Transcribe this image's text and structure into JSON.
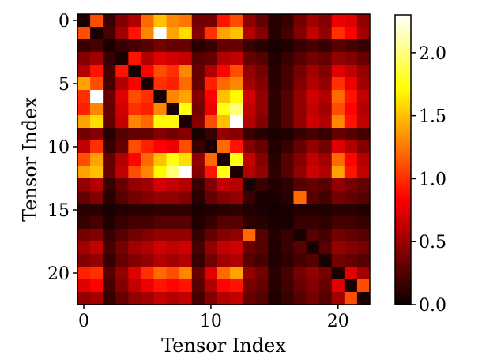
{
  "chart_data": {
    "type": "heatmap",
    "title": "",
    "xlabel": "Tensor Index",
    "ylabel": "Tensor Index",
    "n": 23,
    "x_ticks": [
      0,
      10,
      20
    ],
    "y_ticks": [
      0,
      5,
      10,
      15,
      20
    ],
    "x_tick_labels": [
      "0",
      "10",
      "20"
    ],
    "y_tick_labels": [
      "0",
      "5",
      "10",
      "15",
      "20"
    ],
    "colormap": "hot",
    "colorbar": {
      "range": [
        0.0,
        2.3
      ],
      "ticks": [
        0.0,
        0.5,
        1.0,
        1.5,
        2.0
      ],
      "tick_labels": [
        "0.0",
        "0.5",
        "1.0",
        "1.5",
        "2.0"
      ]
    },
    "values": [
      [
        0.05,
        1.1,
        0.15,
        0.4,
        0.55,
        1.2,
        1.5,
        1.3,
        1.25,
        0.35,
        0.35,
        0.9,
        1.1,
        0.45,
        0.3,
        0.1,
        0.15,
        0.35,
        0.5,
        0.4,
        0.75,
        0.7,
        0.45
      ],
      [
        1.1,
        0.05,
        0.2,
        0.5,
        0.9,
        1.3,
        2.3,
        1.4,
        1.6,
        0.4,
        1.0,
        1.4,
        1.5,
        0.55,
        0.4,
        0.1,
        0.2,
        0.4,
        0.6,
        0.45,
        1.0,
        0.8,
        0.5
      ],
      [
        0.15,
        0.2,
        0.05,
        0.15,
        0.2,
        0.25,
        0.35,
        0.3,
        0.3,
        0.1,
        0.15,
        0.3,
        0.3,
        0.15,
        0.1,
        0.05,
        0.08,
        0.15,
        0.2,
        0.15,
        0.25,
        0.2,
        0.15
      ],
      [
        0.4,
        0.5,
        0.15,
        0.05,
        0.9,
        0.55,
        0.7,
        0.65,
        0.6,
        0.25,
        0.3,
        0.55,
        0.6,
        0.3,
        0.25,
        0.08,
        0.15,
        0.25,
        0.35,
        0.3,
        0.45,
        0.4,
        0.3
      ],
      [
        0.55,
        0.9,
        0.2,
        0.9,
        0.05,
        0.8,
        1.1,
        1.0,
        1.3,
        0.3,
        0.55,
        0.85,
        1.1,
        0.45,
        0.35,
        0.1,
        0.2,
        0.35,
        0.5,
        0.4,
        0.7,
        0.6,
        0.45
      ],
      [
        1.4,
        1.1,
        0.2,
        0.55,
        0.8,
        0.05,
        1.0,
        0.95,
        1.2,
        0.3,
        0.95,
        1.2,
        1.3,
        0.5,
        0.4,
        0.1,
        0.2,
        0.4,
        0.55,
        0.45,
        1.0,
        0.75,
        0.5
      ],
      [
        1.0,
        2.3,
        0.3,
        0.7,
        1.1,
        1.0,
        0.05,
        1.3,
        1.4,
        0.4,
        0.8,
        1.5,
        1.7,
        0.65,
        0.45,
        0.12,
        0.25,
        0.45,
        0.65,
        0.55,
        1.2,
        0.9,
        0.6
      ],
      [
        0.95,
        1.3,
        0.3,
        0.65,
        1.0,
        0.95,
        1.3,
        0.05,
        1.75,
        0.35,
        0.75,
        1.75,
        2.0,
        0.6,
        0.45,
        0.12,
        0.25,
        0.45,
        0.6,
        0.5,
        1.1,
        0.85,
        0.55
      ],
      [
        1.4,
        1.6,
        0.3,
        0.6,
        1.3,
        1.2,
        1.7,
        1.7,
        0.05,
        0.4,
        1.1,
        1.5,
        2.3,
        0.55,
        0.4,
        0.12,
        0.25,
        0.45,
        0.65,
        0.55,
        1.3,
        0.9,
        0.6
      ],
      [
        0.35,
        0.4,
        0.1,
        0.25,
        0.3,
        0.3,
        0.4,
        0.35,
        0.4,
        0.05,
        0.15,
        0.45,
        0.4,
        0.15,
        0.1,
        0.05,
        0.08,
        0.15,
        0.2,
        0.15,
        0.3,
        0.25,
        0.2
      ],
      [
        0.6,
        1.0,
        0.15,
        0.3,
        1.1,
        0.95,
        0.8,
        0.75,
        1.1,
        0.15,
        0.05,
        1.2,
        0.9,
        0.4,
        0.3,
        0.08,
        0.15,
        0.3,
        0.45,
        0.35,
        0.7,
        0.55,
        0.4
      ],
      [
        1.1,
        1.4,
        0.3,
        0.55,
        0.85,
        1.2,
        1.5,
        1.75,
        1.6,
        0.45,
        1.2,
        0.05,
        1.75,
        0.6,
        0.4,
        0.1,
        0.25,
        0.4,
        0.6,
        0.5,
        1.2,
        0.85,
        0.55
      ],
      [
        1.4,
        1.5,
        0.3,
        0.6,
        1.1,
        1.3,
        1.7,
        2.0,
        2.3,
        0.4,
        0.9,
        1.75,
        0.05,
        0.55,
        0.45,
        0.12,
        0.25,
        0.45,
        0.65,
        0.55,
        1.4,
        0.9,
        0.6
      ],
      [
        0.45,
        0.55,
        0.15,
        0.3,
        0.45,
        0.5,
        0.65,
        0.6,
        0.55,
        0.15,
        0.4,
        0.6,
        0.55,
        0.05,
        0.15,
        0.08,
        0.12,
        0.25,
        0.3,
        0.25,
        0.45,
        0.35,
        0.3
      ],
      [
        0.3,
        0.4,
        0.1,
        0.25,
        0.35,
        0.4,
        0.45,
        0.45,
        0.4,
        0.1,
        0.3,
        0.4,
        0.45,
        0.15,
        0.05,
        0.05,
        0.1,
        1.2,
        0.25,
        0.2,
        0.35,
        0.3,
        0.25
      ],
      [
        0.1,
        0.1,
        0.05,
        0.08,
        0.1,
        0.1,
        0.12,
        0.12,
        0.12,
        0.05,
        0.08,
        0.1,
        0.12,
        0.08,
        0.05,
        0.03,
        0.05,
        0.08,
        0.08,
        0.08,
        0.1,
        0.1,
        0.08
      ],
      [
        0.15,
        0.2,
        0.08,
        0.15,
        0.2,
        0.2,
        0.25,
        0.25,
        0.25,
        0.08,
        0.15,
        0.25,
        0.25,
        0.12,
        0.1,
        0.05,
        0.05,
        0.15,
        0.15,
        0.12,
        0.2,
        0.18,
        0.15
      ],
      [
        0.35,
        0.4,
        0.15,
        0.25,
        0.35,
        0.4,
        0.45,
        0.45,
        0.45,
        0.15,
        0.3,
        0.4,
        0.45,
        1.2,
        0.25,
        0.08,
        0.15,
        0.05,
        0.25,
        0.2,
        0.35,
        0.3,
        0.25
      ],
      [
        0.5,
        0.6,
        0.2,
        0.35,
        0.5,
        0.55,
        0.65,
        0.6,
        0.65,
        0.2,
        0.45,
        0.6,
        0.65,
        0.3,
        0.25,
        0.08,
        0.15,
        0.25,
        0.05,
        0.25,
        0.45,
        0.4,
        0.35
      ],
      [
        0.4,
        0.45,
        0.15,
        0.3,
        0.4,
        0.45,
        0.55,
        0.5,
        0.55,
        0.15,
        0.35,
        0.5,
        0.55,
        0.25,
        0.2,
        0.08,
        0.12,
        0.2,
        0.25,
        0.05,
        0.35,
        0.3,
        0.25
      ],
      [
        0.95,
        1.0,
        0.25,
        0.45,
        0.7,
        1.0,
        1.2,
        1.1,
        1.3,
        0.3,
        0.7,
        1.2,
        1.4,
        0.45,
        0.35,
        0.1,
        0.2,
        0.35,
        0.45,
        0.35,
        0.05,
        0.7,
        0.5
      ],
      [
        0.7,
        0.8,
        0.2,
        0.4,
        0.6,
        0.75,
        0.9,
        0.85,
        0.9,
        0.25,
        0.55,
        0.85,
        0.9,
        0.35,
        0.3,
        0.1,
        0.18,
        0.3,
        0.4,
        0.3,
        0.7,
        0.05,
        1.1
      ],
      [
        0.45,
        0.5,
        0.15,
        0.3,
        0.45,
        0.5,
        0.6,
        0.55,
        0.6,
        0.2,
        0.4,
        0.55,
        0.6,
        0.3,
        0.25,
        0.08,
        0.15,
        0.25,
        0.35,
        0.25,
        0.5,
        1.1,
        0.05
      ]
    ]
  }
}
